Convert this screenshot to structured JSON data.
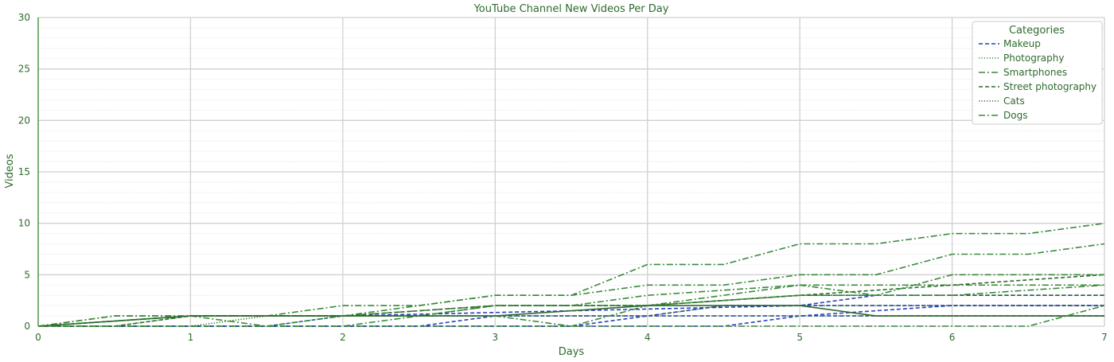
{
  "colors": {
    "background": "#ffffff",
    "text": "#2e6b2e",
    "axis": "#3a8a3a",
    "grid": "#d0d0d0",
    "blue": "#2a3fbf",
    "green": "#3a8a3a",
    "dark_green": "#2e6b2e"
  },
  "chart_data": {
    "type": "line",
    "title": "YouTube Channel New Videos Per Day",
    "xlabel": "Days",
    "ylabel": "Videos",
    "xlim": [
      0,
      7
    ],
    "ylim": [
      0,
      30
    ],
    "xticks": [
      0,
      1,
      2,
      3,
      4,
      5,
      6,
      7
    ],
    "yticks": [
      0,
      5,
      10,
      15,
      20,
      25,
      30
    ],
    "grid": true,
    "legend": {
      "title": "Categories",
      "placement": "top-right",
      "entries": [
        "Makeup",
        "Photography",
        "Smartphones",
        "Street photography",
        "Cats",
        "Dogs"
      ]
    },
    "series": [
      {
        "name": "Makeup",
        "style": "dashed",
        "color": "#2a3fbf",
        "x": [
          0,
          1.5,
          2,
          5,
          5.5,
          7
        ],
        "y": [
          0,
          0,
          1,
          2,
          3,
          3
        ]
      },
      {
        "name": "Makeup",
        "style": "dashed",
        "color": "#2a3fbf",
        "x": [
          0,
          2.5,
          3,
          4,
          4.5,
          6,
          6.5,
          7
        ],
        "y": [
          0,
          0,
          1,
          1,
          2,
          2,
          2,
          2
        ]
      },
      {
        "name": "Makeup",
        "style": "dashed",
        "color": "#2a3fbf",
        "x": [
          0,
          3.5,
          4,
          5,
          6,
          6.5,
          7
        ],
        "y": [
          0,
          0,
          1,
          1,
          2,
          2,
          2
        ]
      },
      {
        "name": "Makeup",
        "style": "dashed",
        "color": "#2a3fbf",
        "x": [
          0,
          4.5,
          5,
          5.5,
          6,
          7
        ],
        "y": [
          0,
          0,
          1,
          1,
          1,
          1
        ]
      },
      {
        "name": "Photography",
        "style": "dotted",
        "color": "#3a8a3a",
        "x": [
          0,
          0.5,
          1,
          1.5,
          2,
          3,
          4,
          5,
          6,
          7
        ],
        "y": [
          0,
          0,
          1,
          1,
          1,
          1,
          1,
          1,
          1,
          1
        ]
      },
      {
        "name": "Smartphones",
        "style": "dashdot",
        "color": "#3a8a3a",
        "x": [
          0,
          0.5,
          1,
          1.5,
          2,
          2.5,
          3,
          3.5,
          4,
          4.5,
          5,
          5.5,
          6,
          6.5,
          7
        ],
        "y": [
          0,
          1,
          1,
          1,
          2,
          2,
          3,
          3,
          6,
          6,
          8,
          8,
          9,
          9,
          10
        ]
      },
      {
        "name": "Smartphones",
        "style": "dashdot",
        "color": "#3a8a3a",
        "x": [
          0,
          0.5,
          1,
          1.5,
          2,
          2.5,
          3,
          3.5,
          4,
          4.5,
          5,
          5.5,
          6,
          6.5,
          7
        ],
        "y": [
          0,
          1,
          1,
          1,
          1,
          2,
          3,
          3,
          4,
          4,
          5,
          5,
          7,
          7,
          8
        ]
      },
      {
        "name": "Smartphones",
        "style": "dashdot",
        "color": "#3a8a3a",
        "x": [
          0,
          1,
          2,
          3,
          3.5,
          4,
          5,
          6,
          7
        ],
        "y": [
          0,
          1,
          1,
          2,
          2,
          3,
          4,
          4,
          4
        ]
      },
      {
        "name": "Street photography",
        "style": "dashed",
        "color": "#2e6b2e",
        "x": [
          0,
          1,
          2,
          3,
          4,
          5,
          6,
          7
        ],
        "y": [
          0,
          1,
          1,
          2,
          2,
          3,
          3,
          3
        ]
      },
      {
        "name": "Street photography",
        "style": "dashed",
        "color": "#2e6b2e",
        "x": [
          0,
          0.5,
          1,
          2,
          2.5,
          3,
          3.5,
          4,
          5,
          6,
          7
        ],
        "y": [
          0,
          0,
          1,
          1,
          1,
          2,
          2,
          2,
          3,
          4,
          5
        ]
      },
      {
        "name": "Cats",
        "style": "dotted",
        "color": "#2e6b2e",
        "x": [
          0,
          1,
          1.5,
          2,
          3,
          4,
          4.5,
          5,
          6,
          7
        ],
        "y": [
          0,
          0,
          1,
          1,
          1,
          1,
          2,
          2,
          2,
          2
        ]
      },
      {
        "name": "Dogs",
        "style": "dashdot",
        "color": "#3a8a3a",
        "x": [
          0,
          1,
          1.5,
          2,
          3,
          3.5,
          4,
          5,
          5.5,
          6,
          7
        ],
        "y": [
          0,
          1,
          0,
          1,
          1,
          0,
          2,
          3,
          3,
          5,
          5
        ]
      },
      {
        "name": "Dogs",
        "style": "dashdot",
        "color": "#3a8a3a",
        "x": [
          0,
          2,
          2.5,
          3,
          4,
          5,
          5.5,
          6,
          7
        ],
        "y": [
          0,
          0,
          1,
          2,
          2,
          4,
          3,
          3,
          4
        ]
      },
      {
        "name": "Dogs",
        "style": "solid",
        "color": "#2e6b2e",
        "x": [
          0,
          1,
          2,
          3,
          4,
          5,
          5.5,
          6,
          7
        ],
        "y": [
          0,
          1,
          1,
          1,
          2,
          2,
          1,
          1,
          1
        ]
      },
      {
        "name": "Dogs",
        "style": "dashdot",
        "color": "#3a8a3a",
        "x": [
          0,
          6.5,
          7
        ],
        "y": [
          0,
          0,
          2
        ]
      }
    ]
  }
}
